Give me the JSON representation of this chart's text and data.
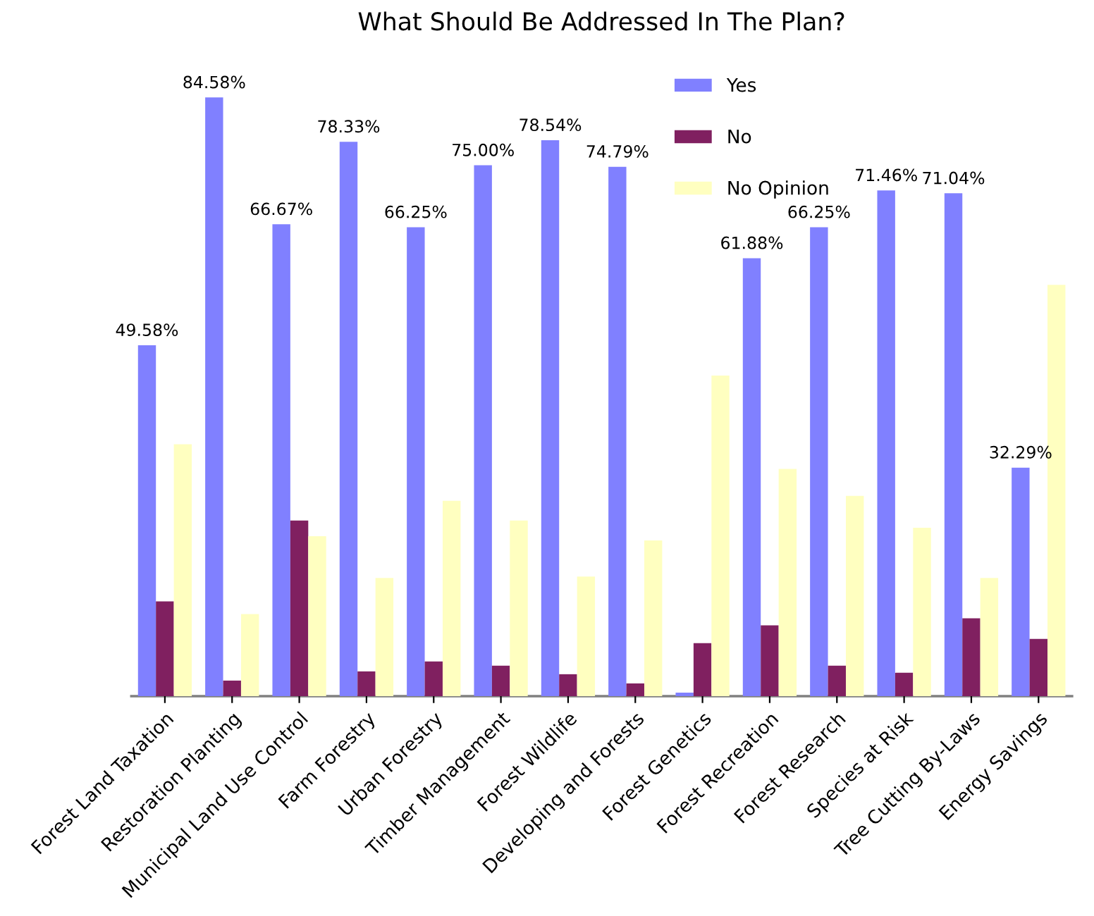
{
  "chart_data": {
    "type": "bar",
    "title": "What Should Be Addressed In The Plan?",
    "categories": [
      "Forest Land Taxation",
      "Restoration Planting",
      "Municipal Land Use Control",
      "Farm Forestry",
      "Urban Forestry",
      "Timber Management",
      "Forest Wildlife",
      "Developing and Forests",
      "Forest Genetics",
      "Forest Recreation",
      "Forest Research",
      "Species at Risk",
      "Tree Cutting By-Laws",
      "Energy Savings"
    ],
    "series": [
      {
        "name": "Yes",
        "color": "#8080ff",
        "values": [
          49.58,
          84.58,
          66.67,
          78.33,
          66.25,
          75.0,
          78.54,
          74.79,
          0.5,
          61.88,
          66.25,
          71.46,
          71.04,
          32.29
        ],
        "value_labels": [
          "49.58%",
          "84.58%",
          "66.67%",
          "78.33%",
          "66.25%",
          "75.00%",
          "78.54%",
          "74.79%",
          null,
          "61.88%",
          "66.25%",
          "71.46%",
          "71.04%",
          "32.29%"
        ]
      },
      {
        "name": "No",
        "color": "#802060",
        "values": [
          13.4,
          2.2,
          24.8,
          3.5,
          4.9,
          4.3,
          3.1,
          1.8,
          7.5,
          10.0,
          4.3,
          3.3,
          11.0,
          8.1
        ]
      },
      {
        "name": "No Opinion",
        "color": "#ffffc0",
        "values": [
          35.6,
          11.6,
          22.6,
          16.7,
          27.6,
          24.8,
          16.9,
          22.0,
          45.3,
          32.1,
          28.3,
          23.8,
          16.7,
          58.1
        ]
      }
    ],
    "ylim": [
      0,
      88
    ],
    "grid": false,
    "legend": "top right"
  }
}
